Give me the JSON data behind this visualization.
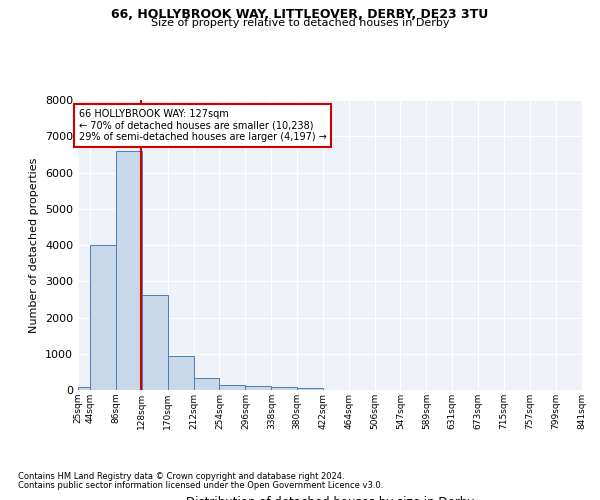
{
  "title_line1": "66, HOLLYBROOK WAY, LITTLEOVER, DERBY, DE23 3TU",
  "title_line2": "Size of property relative to detached houses in Derby",
  "xlabel": "Distribution of detached houses by size in Derby",
  "ylabel": "Number of detached properties",
  "footnote1": "Contains HM Land Registry data © Crown copyright and database right 2024.",
  "footnote2": "Contains public sector information licensed under the Open Government Licence v3.0.",
  "annotation_line1": "66 HOLLYBROOK WAY: 127sqm",
  "annotation_line2": "← 70% of detached houses are smaller (10,238)",
  "annotation_line3": "29% of semi-detached houses are larger (4,197) →",
  "property_size": 127,
  "bin_edges": [
    25,
    44,
    86,
    128,
    170,
    212,
    254,
    296,
    338,
    380,
    422,
    464,
    506,
    547,
    589,
    631,
    673,
    715,
    757,
    799,
    841
  ],
  "bin_heights": [
    75,
    4000,
    6600,
    2620,
    950,
    320,
    130,
    110,
    75,
    55,
    0,
    0,
    0,
    0,
    0,
    0,
    0,
    0,
    0,
    0
  ],
  "bar_color": "#c9d8e8",
  "bar_edge_color": "#4a7fb5",
  "vline_color": "#cc0000",
  "vline_x": 127,
  "ylim": [
    0,
    8000
  ],
  "yticks": [
    0,
    1000,
    2000,
    3000,
    4000,
    5000,
    6000,
    7000,
    8000
  ],
  "bg_color": "#eef2f8",
  "grid_color": "#ffffff",
  "annotation_box_color": "#cc0000",
  "tick_labels": [
    "25sqm",
    "44sqm",
    "86sqm",
    "128sqm",
    "170sqm",
    "212sqm",
    "254sqm",
    "296sqm",
    "338sqm",
    "380sqm",
    "422sqm",
    "464sqm",
    "506sqm",
    "547sqm",
    "589sqm",
    "631sqm",
    "673sqm",
    "715sqm",
    "757sqm",
    "799sqm",
    "841sqm"
  ]
}
